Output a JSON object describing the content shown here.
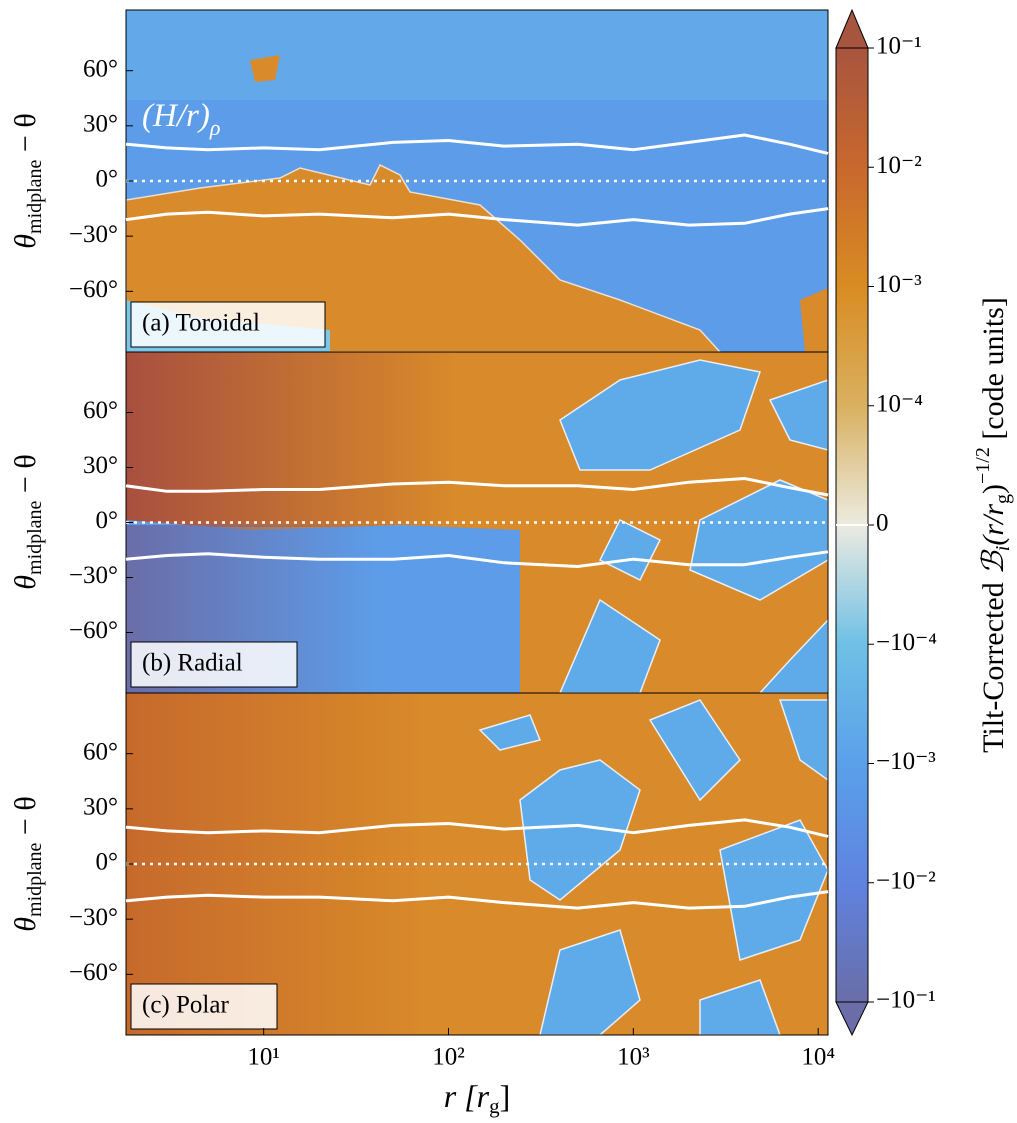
{
  "chart_data": [
    {
      "type": "heatmap",
      "panel_label": "(a) Toroidal",
      "annotation": [
        "(H/r)",
        "ρ"
      ],
      "ylabel": [
        "θ",
        "midplane",
        " − θ"
      ],
      "xlim": [
        1.8,
        11300
      ],
      "xscale": "log",
      "ylim": [
        -93,
        93
      ],
      "yticks": [
        {
          "value": -60,
          "label": "−60°"
        },
        {
          "value": -30,
          "label": "−30°"
        },
        {
          "value": 0,
          "label": "0°"
        },
        {
          "value": 30,
          "label": "30°"
        },
        {
          "value": 60,
          "label": "60°"
        }
      ],
      "x": [
        1.8,
        3,
        5,
        10,
        20,
        50,
        100,
        200,
        500,
        1000,
        2000,
        4000,
        7000,
        11300
      ],
      "series": [
        {
          "color": "#ffffff",
          "values": [
            20,
            18,
            17,
            18,
            17,
            21,
            22,
            19,
            20,
            17,
            21,
            25,
            20,
            15
          ]
        },
        {
          "color": "#ffffff",
          "values": [
            -21,
            -18,
            -17,
            -19,
            -18,
            -20,
            -18,
            -21,
            -24,
            -21,
            -24,
            -23,
            -18,
            -15
          ]
        }
      ]
    },
    {
      "type": "heatmap",
      "panel_label": "(b) Radial",
      "ylabel": [
        "θ",
        "midplane",
        " − θ"
      ],
      "xlim": [
        1.8,
        11300
      ],
      "xscale": "log",
      "ylim": [
        -93,
        93
      ],
      "yticks": [
        {
          "value": -60,
          "label": "−60°"
        },
        {
          "value": -30,
          "label": "−30°"
        },
        {
          "value": 0,
          "label": "0°"
        },
        {
          "value": 30,
          "label": "30°"
        },
        {
          "value": 60,
          "label": "60°"
        }
      ],
      "x": [
        1.8,
        3,
        5,
        10,
        20,
        50,
        100,
        200,
        500,
        1000,
        2000,
        4000,
        7000,
        11300
      ],
      "series": [
        {
          "color": "#ffffff",
          "values": [
            20,
            17,
            17,
            18,
            18,
            21,
            22,
            20,
            20,
            18,
            22,
            24,
            19,
            15
          ]
        },
        {
          "color": "#ffffff",
          "values": [
            -20,
            -18,
            -17,
            -19,
            -20,
            -20,
            -18,
            -22,
            -24,
            -20,
            -23,
            -23,
            -19,
            -16
          ]
        }
      ]
    },
    {
      "type": "heatmap",
      "panel_label": "(c) Polar",
      "ylabel": [
        "θ",
        "midplane",
        " − θ"
      ],
      "xlabel": [
        "r [r",
        "g",
        "]"
      ],
      "xlim": [
        1.8,
        11300
      ],
      "xscale": "log",
      "ylim": [
        -93,
        93
      ],
      "yticks": [
        {
          "value": -60,
          "label": "−60°"
        },
        {
          "value": -30,
          "label": "−30°"
        },
        {
          "value": 0,
          "label": "0°"
        },
        {
          "value": 30,
          "label": "30°"
        },
        {
          "value": 60,
          "label": "60°"
        }
      ],
      "xticks": [
        {
          "value": 10,
          "label": "10¹"
        },
        {
          "value": 100,
          "label": "10²"
        },
        {
          "value": 1000,
          "label": "10³"
        },
        {
          "value": 10000,
          "label": "10⁴"
        }
      ],
      "x": [
        1.8,
        3,
        5,
        10,
        20,
        50,
        100,
        200,
        500,
        1000,
        2000,
        4000,
        7000,
        11300
      ],
      "series": [
        {
          "color": "#ffffff",
          "values": [
            20,
            18,
            17,
            18,
            17,
            21,
            22,
            19,
            21,
            17,
            21,
            24,
            20,
            15
          ]
        },
        {
          "color": "#ffffff",
          "values": [
            -20,
            -18,
            -17,
            -18,
            -18,
            -20,
            -18,
            -21,
            -24,
            -21,
            -24,
            -23,
            -18,
            -15
          ]
        }
      ]
    },
    {
      "type": "colorbar",
      "scale": "symlog",
      "linthresh": 0.0001,
      "label": [
        "Tilt-Corrected ",
        "ℬ",
        "i",
        "(r/r",
        "g",
        ")",
        "−1/2",
        " [code units]"
      ],
      "clim": [
        -0.1,
        0.1
      ],
      "yticks": [
        {
          "value": 0.1,
          "label": "10⁻¹"
        },
        {
          "value": 0.01,
          "label": "10⁻²"
        },
        {
          "value": 0.001,
          "label": "10⁻³"
        },
        {
          "value": 0.0001,
          "label": "10⁻⁴"
        },
        0,
        {
          "value": -0.0001,
          "label": "−10⁻⁴"
        },
        {
          "value": -0.001,
          "label": "−10⁻³"
        },
        {
          "value": -0.01,
          "label": "−10⁻²"
        },
        {
          "value": -0.1,
          "label": "−10⁻¹"
        }
      ],
      "colors": [
        "#a8553f",
        "#c8682e",
        "#d98c22",
        "#d9b060",
        "#ecebe0",
        "#6fc0e6",
        "#5aa0ea",
        "#5f83e0",
        "#6a6da8"
      ]
    }
  ]
}
